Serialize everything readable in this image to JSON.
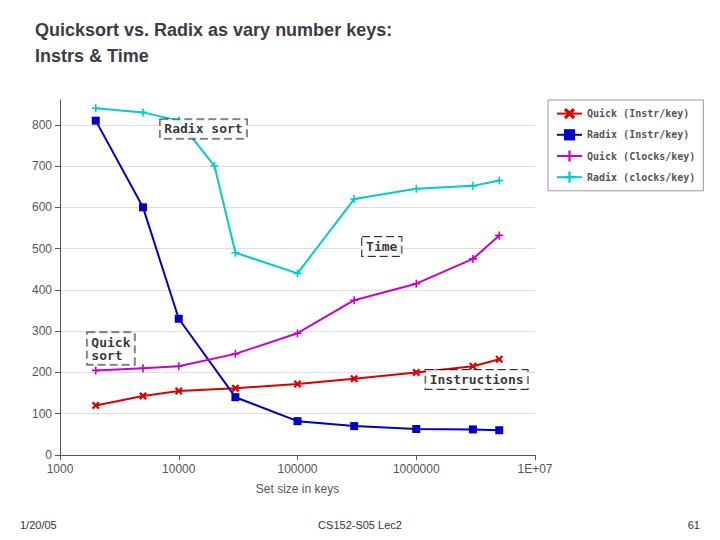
{
  "chart_data": {
    "type": "line",
    "title": "Quicksort vs. Radix as vary number keys:\nInstrs & Time",
    "xlabel": "Set size in keys",
    "log": "x",
    "xlim": [
      1000,
      10000000
    ],
    "xticks": [
      1000,
      10000,
      100000,
      1000000,
      {
        "value": 10000000,
        "label": "1E+07"
      }
    ],
    "ylim": [
      0,
      860
    ],
    "yticks": [
      0,
      100,
      200,
      300,
      400,
      500,
      600,
      700,
      800
    ],
    "grid": "y",
    "legend": "right",
    "series": [
      {
        "name": "Quick (Instr/key)",
        "color": "#dd0000",
        "marker": "x",
        "x": [
          2000,
          5000,
          10000,
          30000,
          100000,
          300000,
          1000000,
          3000000,
          5000000
        ],
        "values": [
          120,
          143,
          155,
          162,
          172,
          185,
          200,
          215,
          232
        ]
      },
      {
        "name": "Radix (Instr/key)",
        "color": "#0000cc",
        "marker": "square",
        "x": [
          2000,
          5000,
          10000,
          30000,
          100000,
          300000,
          1000000,
          3000000,
          5000000
        ],
        "values": [
          810,
          600,
          330,
          140,
          82,
          70,
          63,
          62,
          60
        ]
      },
      {
        "name": "Quick (Clocks/key)",
        "color": "#cc00cc",
        "marker": "plus",
        "x": [
          2000,
          5000,
          10000,
          30000,
          100000,
          300000,
          1000000,
          3000000,
          5000000
        ],
        "values": [
          205,
          210,
          215,
          245,
          295,
          375,
          415,
          475,
          532
        ]
      },
      {
        "name": "Radix (clocks/key)",
        "color": "#00cccc",
        "marker": "plus",
        "x": [
          2000,
          5000,
          10000,
          20000,
          30000,
          100000,
          300000,
          1000000,
          3000000,
          5000000
        ],
        "values": [
          840,
          830,
          810,
          700,
          490,
          440,
          620,
          645,
          652,
          665
        ]
      }
    ],
    "annotations": [
      {
        "text": "Radix sort",
        "x": 7000,
        "y": 790
      },
      {
        "text": "Quick\nsort",
        "x": 1700,
        "y": 258
      },
      {
        "text": "Time",
        "x": 350000,
        "y": 505
      },
      {
        "text": "Instructions",
        "x": 1200000,
        "y": 183
      }
    ],
    "footer": [
      "1/20/05",
      "CS152-S05 Lec2",
      "61"
    ]
  }
}
